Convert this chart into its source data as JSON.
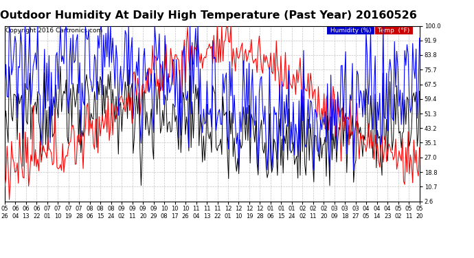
{
  "title": "Outdoor Humidity At Daily High Temperature (Past Year) 20160526",
  "copyright": "Copyright 2016 Cartronics.com",
  "legend_humidity": "Humidity (%)",
  "legend_temp": "Temp  (°F)",
  "legend_humidity_bg": "#0000cc",
  "legend_temp_bg": "#cc0000",
  "yticks": [
    2.6,
    10.7,
    18.8,
    27.0,
    35.1,
    43.2,
    51.3,
    59.4,
    67.5,
    75.7,
    83.8,
    91.9,
    100.0
  ],
  "ymin": 2.6,
  "ymax": 100.0,
  "xtick_labels": [
    "05/26",
    "06/04",
    "06/13",
    "06/22",
    "07/01",
    "07/10",
    "07/19",
    "07/28",
    "08/06",
    "08/15",
    "08/24",
    "09/02",
    "09/11",
    "09/20",
    "09/29",
    "10/08",
    "10/17",
    "10/26",
    "11/04",
    "11/13",
    "11/22",
    "12/01",
    "12/10",
    "12/19",
    "12/28",
    "01/06",
    "01/15",
    "01/24",
    "02/02",
    "02/11",
    "02/20",
    "03/09",
    "03/18",
    "03/27",
    "04/05",
    "04/14",
    "04/23",
    "05/02",
    "05/11",
    "05/20"
  ],
  "background_color": "#ffffff",
  "grid_color": "#bbbbbb",
  "title_fontsize": 11.5,
  "axis_fontsize": 6.0,
  "copyright_fontsize": 6.5,
  "humidity_color": "#0000ff",
  "temp_color": "#ff0000",
  "black_color": "#000000",
  "humidity_lw": 0.8,
  "temp_lw": 0.8,
  "black_lw": 0.7
}
